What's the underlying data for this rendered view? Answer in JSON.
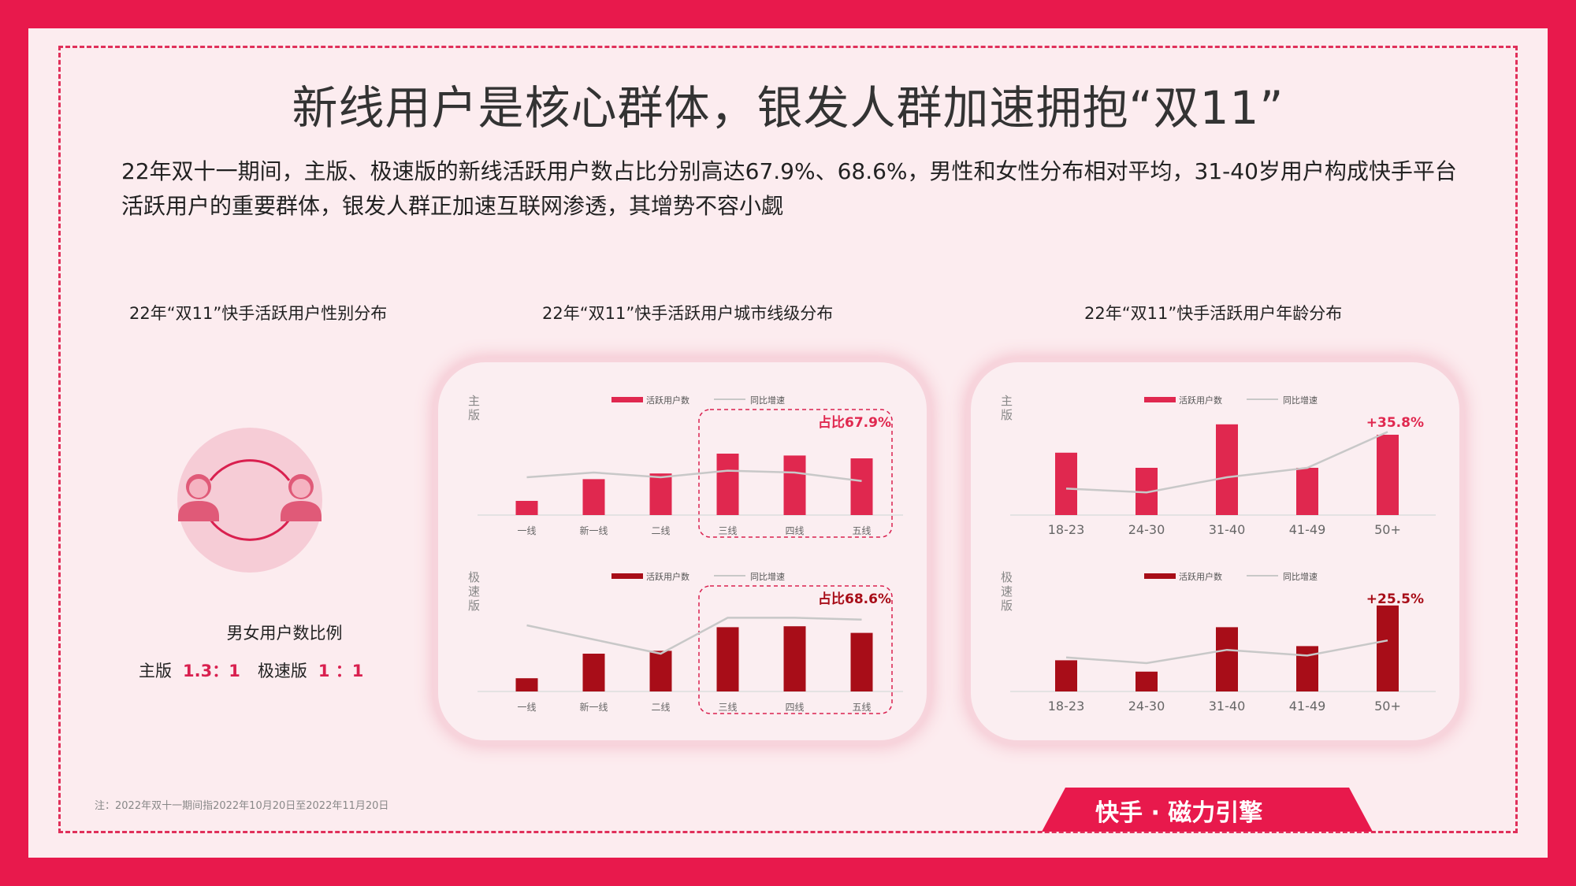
{
  "title": "新线用户是核心群体，银发人群加速拥抱“双11”",
  "summary": "22年双十一期间，主版、极速版的新线活跃用户数占比分别高达67.9%、68.6%，男性和女性分布相对平均，31-40岁用户构成快手平台活跃用户的重要群体，银发人群正加速互联网渗透，其增势不容小觑",
  "sections": {
    "gender_title": "22年“双11”快手活跃用户性别分布",
    "city_title": "22年“双11”快手活跃用户城市线级分布",
    "age_title": "22年“双11”快手活跃用户年龄分布"
  },
  "gender": {
    "ratio_label": "男女用户数比例",
    "main_label": "主版",
    "main_ratio": "1.3：1",
    "lite_label": "极速版",
    "lite_ratio": "1 ：1",
    "icon": "male-female-users-icon"
  },
  "note": "注：2022年双十一期间指2022年10月20日至2022年11月20日",
  "footer": {
    "brand": "快手 · 磁力引擎"
  },
  "colors": {
    "main_bar": "#e0284f",
    "lite_bar": "#a80d18",
    "line": "#c8c8c8",
    "accent": "#d9204f",
    "border": "#e8194c"
  },
  "chart_data": [
    {
      "type": "bar",
      "panel_label": "主版",
      "categories": [
        "一线",
        "新一线",
        "二线",
        "三线",
        "四线",
        "五线"
      ],
      "series": [
        {
          "name": "活跃用户数",
          "values": [
            15,
            38,
            44,
            65,
            63,
            60
          ]
        },
        {
          "name": "同比增速",
          "type": "line",
          "values": [
            40,
            45,
            40,
            47,
            45,
            36
          ]
        }
      ],
      "annotation": "占比67.9%",
      "highlight_categories": [
        "三线",
        "四线",
        "五线"
      ]
    },
    {
      "type": "bar",
      "panel_label": "极速版",
      "categories": [
        "一线",
        "新一线",
        "二线",
        "三线",
        "四线",
        "五线"
      ],
      "series": [
        {
          "name": "活跃用户数",
          "values": [
            14,
            40,
            43,
            68,
            69,
            62
          ]
        },
        {
          "name": "同比增速",
          "type": "line",
          "values": [
            70,
            55,
            40,
            78,
            78,
            76
          ]
        }
      ],
      "annotation": "占比68.6%",
      "highlight_categories": [
        "三线",
        "四线",
        "五线"
      ]
    },
    {
      "type": "bar",
      "panel_label": "主版",
      "categories": [
        "18-23",
        "24-30",
        "31-40",
        "41-49",
        "50+"
      ],
      "series": [
        {
          "name": "活跃用户数",
          "values": [
            66,
            50,
            96,
            50,
            85
          ]
        },
        {
          "name": "同比增速",
          "type": "line",
          "values": [
            28,
            24,
            40,
            50,
            88
          ]
        }
      ],
      "annotation": "+35.8%"
    },
    {
      "type": "bar",
      "panel_label": "极速版",
      "categories": [
        "18-23",
        "24-30",
        "31-40",
        "41-49",
        "50+"
      ],
      "series": [
        {
          "name": "活跃用户数",
          "values": [
            33,
            21,
            68,
            48,
            91
          ]
        },
        {
          "name": "同比增速",
          "type": "line",
          "values": [
            36,
            30,
            44,
            38,
            54
          ]
        }
      ],
      "annotation": "+25.5%"
    }
  ]
}
